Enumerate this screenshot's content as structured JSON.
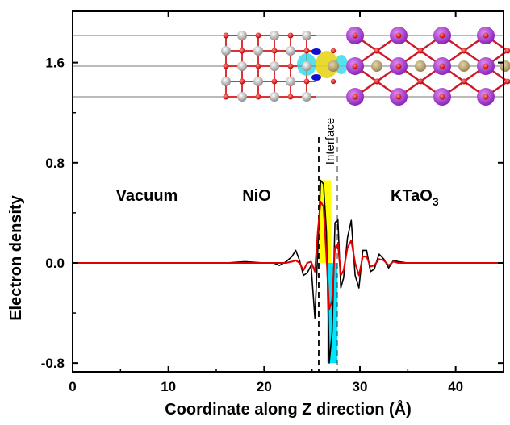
{
  "chart_data": {
    "type": "line",
    "xlabel": "Coordinate along Z direction (Å)",
    "ylabel": "Electron density",
    "xlim": [
      0,
      45
    ],
    "ylim": [
      -0.87,
      2.01
    ],
    "xticks": [
      0,
      10,
      20,
      30,
      40
    ],
    "yticks": [
      -0.8,
      0.0,
      0.8,
      1.6
    ],
    "ytick_labels": [
      "-0.8",
      "0.0",
      "0.8",
      "1.6"
    ],
    "grid": false,
    "legend": "none",
    "annotations": {
      "vacuum": "Vacuum",
      "nio": "NiO",
      "ktao3_main": "KTaO",
      "ktao3_sub": "3",
      "interface": "Interface"
    },
    "interface_lines_x": [
      25.7,
      27.6
    ],
    "shaded_bands": [
      {
        "x0": 25.7,
        "x1": 27.0,
        "y0": 0.0,
        "y1": 0.66,
        "color": "#ffff00"
      },
      {
        "x0": 26.6,
        "x1": 27.6,
        "y0": -0.8,
        "y1": 0.0,
        "color": "#00e5ff"
      }
    ],
    "series": [
      {
        "color": "#000000",
        "x": [
          0,
          4,
          8,
          12,
          16,
          18,
          20,
          21,
          21.6,
          22.3,
          22.9,
          23.3,
          23.7,
          24.1,
          24.5,
          24.9,
          25.3,
          25.6,
          25.9,
          26.2,
          26.5,
          26.8,
          27.1,
          27.4,
          27.7,
          28.0,
          28.3,
          28.7,
          29.1,
          29.5,
          29.9,
          30.3,
          30.7,
          31.1,
          31.5,
          32.0,
          32.5,
          33.0,
          33.5,
          34.0,
          35,
          37,
          40,
          45
        ],
        "values": [
          0.0,
          0.0,
          0.0,
          0.0,
          0.0,
          0.01,
          0.0,
          0.0,
          -0.02,
          0.01,
          0.05,
          0.1,
          0.02,
          -0.1,
          -0.08,
          -0.02,
          -0.44,
          0.1,
          0.66,
          0.63,
          0.25,
          -0.8,
          -0.55,
          0.32,
          0.35,
          -0.2,
          -0.12,
          0.2,
          0.34,
          -0.1,
          -0.2,
          0.1,
          0.1,
          -0.07,
          -0.05,
          0.07,
          0.03,
          -0.04,
          0.02,
          0.01,
          0.0,
          0.0,
          0.0,
          0.0
        ]
      },
      {
        "color": "#e00000",
        "x": [
          0,
          4,
          8,
          12,
          16,
          18,
          20,
          21,
          22.3,
          22.9,
          23.3,
          23.7,
          24.1,
          24.5,
          24.9,
          25.3,
          25.6,
          25.9,
          26.2,
          26.5,
          26.8,
          27.1,
          27.4,
          27.7,
          28.0,
          28.3,
          28.7,
          29.1,
          29.5,
          29.9,
          30.3,
          30.7,
          31.1,
          31.5,
          32.0,
          32.5,
          33.0,
          33.5,
          34.0,
          35,
          37,
          40,
          45
        ],
        "values": [
          0.0,
          0.0,
          0.0,
          0.0,
          0.0,
          0.0,
          0.0,
          0.0,
          0.0,
          0.01,
          0.02,
          0.0,
          -0.06,
          0.0,
          0.01,
          -0.07,
          0.25,
          0.49,
          0.45,
          0.05,
          -0.37,
          -0.3,
          0.12,
          0.16,
          -0.1,
          -0.06,
          0.12,
          0.18,
          0.0,
          -0.1,
          0.05,
          0.05,
          -0.03,
          -0.02,
          0.03,
          0.02,
          -0.02,
          0.01,
          0.0,
          0.0,
          0.0,
          0.0,
          0.0
        ]
      }
    ]
  }
}
